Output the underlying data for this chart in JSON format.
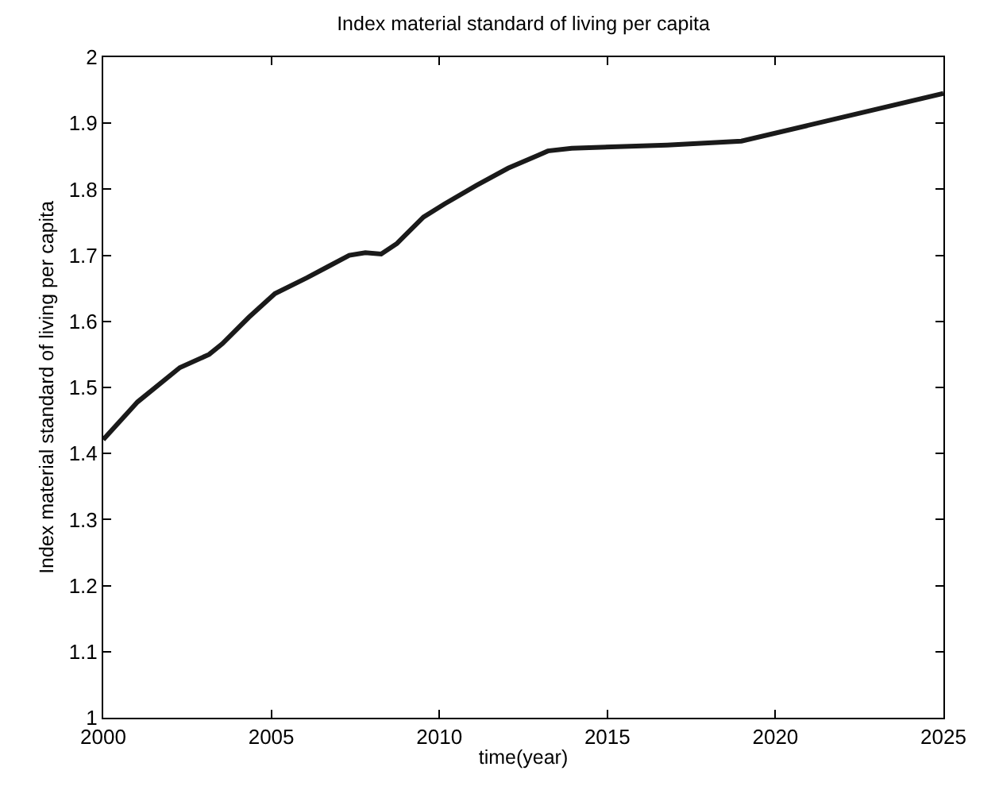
{
  "chart_data": {
    "type": "line",
    "title": "Index material standard of living per capita",
    "xlabel": "time(year)",
    "ylabel": "Index material standard of living per capita",
    "x": [
      2000,
      2001.02,
      2002.28,
      2003.15,
      2003.54,
      2004.33,
      2005.11,
      2006.06,
      2006.69,
      2007.32,
      2007.8,
      2008.27,
      2008.74,
      2009.53,
      2010.16,
      2011.11,
      2012.05,
      2012.96,
      2013.23,
      2013.94,
      2016.78,
      2018.99,
      2025
    ],
    "series": [
      {
        "color": "#1a1a1a",
        "values": [
          1.421,
          1.478,
          1.53,
          1.55,
          1.566,
          1.606,
          1.642,
          1.666,
          1.683,
          1.7,
          1.704,
          1.702,
          1.718,
          1.758,
          1.778,
          1.806,
          1.832,
          1.852,
          1.858,
          1.862,
          1.867,
          1.873,
          1.945
        ]
      }
    ],
    "xlim": [
      2000,
      2025
    ],
    "xticks": [
      2000,
      2005,
      2010,
      2015,
      2020,
      2025
    ],
    "ylim": [
      1,
      2
    ],
    "yticks": [
      1,
      1.1,
      1.2,
      1.3,
      1.4,
      1.5,
      1.6,
      1.7,
      1.8,
      1.9,
      2
    ],
    "grid": false,
    "line_style": "solid"
  }
}
